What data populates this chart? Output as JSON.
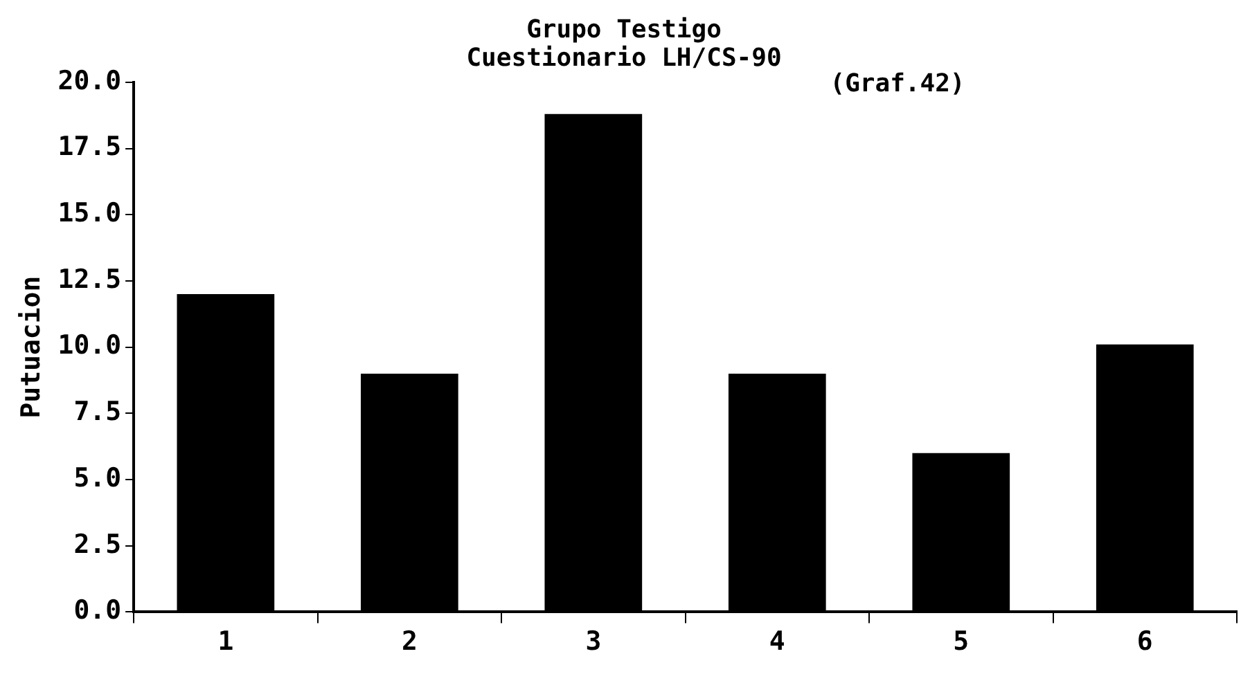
{
  "chart_data": {
    "type": "bar",
    "title": [
      "Grupo Testigo",
      "Cuestionario LH/CS-90"
    ],
    "subtitle": "(Graf.42)",
    "ylabel": "Putuacion",
    "categories": [
      "1",
      "2",
      "3",
      "4",
      "5",
      "6"
    ],
    "values": [
      12.0,
      9.0,
      18.8,
      9.0,
      6.0,
      10.1
    ],
    "color": "#000000",
    "ylim": [
      0,
      20
    ],
    "yticks": [
      {
        "value": 0,
        "label": "0.0"
      },
      {
        "value": 2.5,
        "label": "2.5"
      },
      {
        "value": 5,
        "label": "5.0"
      },
      {
        "value": 7.5,
        "label": "7.5"
      },
      {
        "value": 10,
        "label": "10.0"
      },
      {
        "value": 12.5,
        "label": "12.5"
      },
      {
        "value": 15,
        "label": "15.0"
      },
      {
        "value": 17.5,
        "label": "17.5"
      },
      {
        "value": 20,
        "label": "20.0"
      }
    ],
    "grid": false,
    "legend": false
  }
}
